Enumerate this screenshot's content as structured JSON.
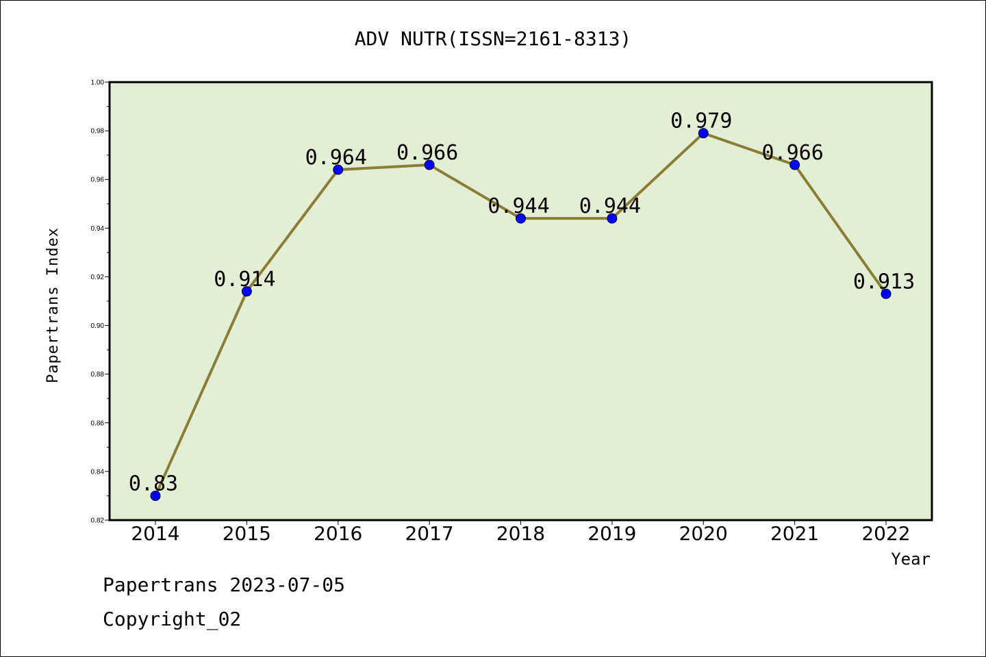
{
  "chart_data": {
    "type": "line",
    "title": "ADV NUTR(ISSN=2161-8313)",
    "xlabel": "Year",
    "ylabel": "Papertrans Index",
    "categories": [
      "2014",
      "2015",
      "2016",
      "2017",
      "2018",
      "2019",
      "2020",
      "2021",
      "2022"
    ],
    "series": [
      {
        "values": [
          0.83,
          0.914,
          0.964,
          0.966,
          0.944,
          0.944,
          0.979,
          0.966,
          0.913
        ],
        "labels": [
          "0.83",
          "0.914",
          "0.964",
          "0.966",
          "0.944",
          "0.944",
          "0.979",
          "0.966",
          "0.913"
        ]
      }
    ],
    "ylim": [
      0.82,
      1.0
    ],
    "yticks": [
      "0.82",
      "0.84",
      "0.86",
      "0.88",
      "0.90",
      "0.92",
      "0.94",
      "0.96",
      "0.98",
      "1.00"
    ],
    "grid": false,
    "colors": {
      "plot_background": "#e2efd5",
      "line": "#8b7d35",
      "marker": "#0000ff"
    }
  },
  "footer": {
    "line1": "Papertrans 2023-07-05",
    "line2": "Copyright_02"
  }
}
